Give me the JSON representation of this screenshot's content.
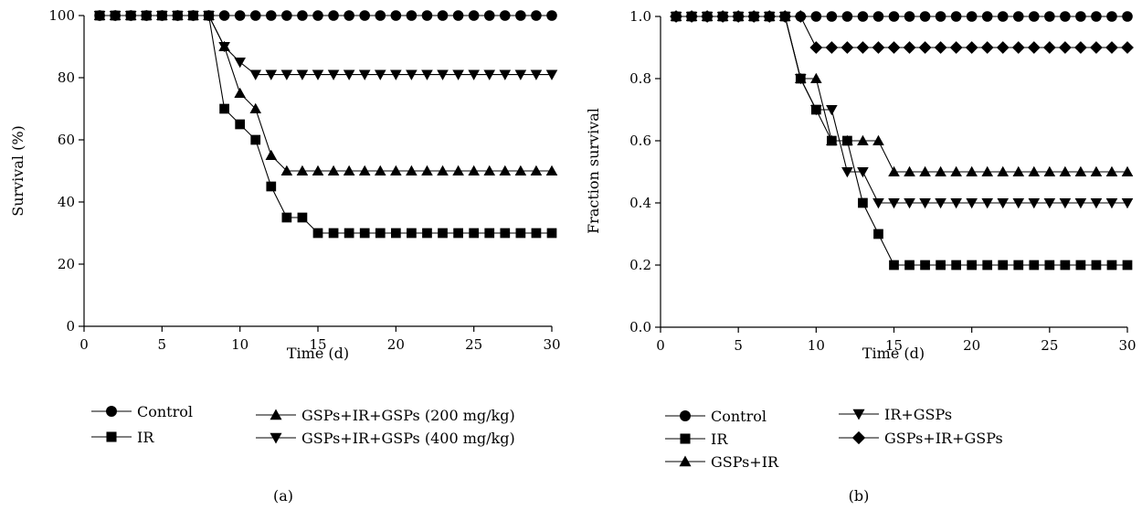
{
  "chart_data": [
    {
      "type": "line",
      "panel_label": "(a)",
      "xlabel": "Time (d)",
      "ylabel": "Survival (%)",
      "xlim": [
        0,
        30
      ],
      "ylim": [
        0,
        100
      ],
      "xticks": [
        0,
        5,
        10,
        15,
        20,
        25,
        30
      ],
      "yticks": [
        0,
        20,
        40,
        60,
        80,
        100
      ],
      "legend_placement": "bottom",
      "series": [
        {
          "name": "Control",
          "marker": "circle",
          "x": [
            1,
            2,
            3,
            4,
            5,
            6,
            7,
            8,
            9,
            10,
            11,
            12,
            13,
            14,
            15,
            16,
            17,
            18,
            19,
            20,
            21,
            22,
            23,
            24,
            25,
            26,
            27,
            28,
            29,
            30
          ],
          "y": [
            100,
            100,
            100,
            100,
            100,
            100,
            100,
            100,
            100,
            100,
            100,
            100,
            100,
            100,
            100,
            100,
            100,
            100,
            100,
            100,
            100,
            100,
            100,
            100,
            100,
            100,
            100,
            100,
            100,
            100
          ]
        },
        {
          "name": "IR",
          "marker": "square",
          "x": [
            1,
            2,
            3,
            4,
            5,
            6,
            7,
            8,
            9,
            10,
            11,
            12,
            13,
            14,
            15,
            16,
            17,
            18,
            19,
            20,
            21,
            22,
            23,
            24,
            25,
            26,
            27,
            28,
            29,
            30
          ],
          "y": [
            100,
            100,
            100,
            100,
            100,
            100,
            100,
            100,
            70,
            65,
            60,
            45,
            35,
            35,
            30,
            30,
            30,
            30,
            30,
            30,
            30,
            30,
            30,
            30,
            30,
            30,
            30,
            30,
            30,
            30
          ]
        },
        {
          "name": "GSPs+IR+GSPs (200 mg/kg)",
          "marker": "triangle-up",
          "x": [
            1,
            2,
            3,
            4,
            5,
            6,
            7,
            8,
            9,
            10,
            11,
            12,
            13,
            14,
            15,
            16,
            17,
            18,
            19,
            20,
            21,
            22,
            23,
            24,
            25,
            26,
            27,
            28,
            29,
            30
          ],
          "y": [
            100,
            100,
            100,
            100,
            100,
            100,
            100,
            100,
            90,
            75,
            70,
            55,
            50,
            50,
            50,
            50,
            50,
            50,
            50,
            50,
            50,
            50,
            50,
            50,
            50,
            50,
            50,
            50,
            50,
            50
          ]
        },
        {
          "name": "GSPs+IR+GSPs (400 mg/kg)",
          "marker": "triangle-down",
          "x": [
            1,
            2,
            3,
            4,
            5,
            6,
            7,
            8,
            9,
            10,
            11,
            12,
            13,
            14,
            15,
            16,
            17,
            18,
            19,
            20,
            21,
            22,
            23,
            24,
            25,
            26,
            27,
            28,
            29,
            30
          ],
          "y": [
            100,
            100,
            100,
            100,
            100,
            100,
            100,
            100,
            90,
            85,
            81,
            81,
            81,
            81,
            81,
            81,
            81,
            81,
            81,
            81,
            81,
            81,
            81,
            81,
            81,
            81,
            81,
            81,
            81,
            81
          ]
        }
      ]
    },
    {
      "type": "line",
      "panel_label": "(b)",
      "xlabel": "Time (d)",
      "ylabel": "Fraction survival",
      "xlim": [
        0,
        30
      ],
      "ylim": [
        0,
        1
      ],
      "xticks": [
        0,
        5,
        10,
        15,
        20,
        25,
        30
      ],
      "yticks": [
        "0.0",
        "0.2",
        "0.4",
        "0.6",
        "0.8",
        "1.0"
      ],
      "legend_placement": "bottom",
      "series": [
        {
          "name": "Control",
          "marker": "circle",
          "x": [
            1,
            2,
            3,
            4,
            5,
            6,
            7,
            8,
            9,
            10,
            11,
            12,
            13,
            14,
            15,
            16,
            17,
            18,
            19,
            20,
            21,
            22,
            23,
            24,
            25,
            26,
            27,
            28,
            29,
            30
          ],
          "y": [
            1,
            1,
            1,
            1,
            1,
            1,
            1,
            1,
            1,
            1,
            1,
            1,
            1,
            1,
            1,
            1,
            1,
            1,
            1,
            1,
            1,
            1,
            1,
            1,
            1,
            1,
            1,
            1,
            1,
            1
          ]
        },
        {
          "name": "IR",
          "marker": "square",
          "x": [
            1,
            2,
            3,
            4,
            5,
            6,
            7,
            8,
            9,
            10,
            11,
            12,
            13,
            14,
            15,
            16,
            17,
            18,
            19,
            20,
            21,
            22,
            23,
            24,
            25,
            26,
            27,
            28,
            29,
            30
          ],
          "y": [
            1,
            1,
            1,
            1,
            1,
            1,
            1,
            1,
            0.8,
            0.7,
            0.6,
            0.6,
            0.4,
            0.3,
            0.2,
            0.2,
            0.2,
            0.2,
            0.2,
            0.2,
            0.2,
            0.2,
            0.2,
            0.2,
            0.2,
            0.2,
            0.2,
            0.2,
            0.2,
            0.2
          ]
        },
        {
          "name": "GSPs+IR",
          "marker": "triangle-up",
          "x": [
            1,
            2,
            3,
            4,
            5,
            6,
            7,
            8,
            9,
            10,
            11,
            12,
            13,
            14,
            15,
            16,
            17,
            18,
            19,
            20,
            21,
            22,
            23,
            24,
            25,
            26,
            27,
            28,
            29,
            30
          ],
          "y": [
            1,
            1,
            1,
            1,
            1,
            1,
            1,
            1,
            0.8,
            0.8,
            0.6,
            0.6,
            0.6,
            0.6,
            0.5,
            0.5,
            0.5,
            0.5,
            0.5,
            0.5,
            0.5,
            0.5,
            0.5,
            0.5,
            0.5,
            0.5,
            0.5,
            0.5,
            0.5,
            0.5
          ]
        },
        {
          "name": "IR+GSPs",
          "marker": "triangle-down",
          "x": [
            1,
            2,
            3,
            4,
            5,
            6,
            7,
            8,
            9,
            10,
            11,
            12,
            13,
            14,
            15,
            16,
            17,
            18,
            19,
            20,
            21,
            22,
            23,
            24,
            25,
            26,
            27,
            28,
            29,
            30
          ],
          "y": [
            1,
            1,
            1,
            1,
            1,
            1,
            1,
            1,
            0.8,
            0.7,
            0.7,
            0.5,
            0.5,
            0.4,
            0.4,
            0.4,
            0.4,
            0.4,
            0.4,
            0.4,
            0.4,
            0.4,
            0.4,
            0.4,
            0.4,
            0.4,
            0.4,
            0.4,
            0.4,
            0.4
          ]
        },
        {
          "name": "GSPs+IR+GSPs",
          "marker": "diamond",
          "x": [
            1,
            2,
            3,
            4,
            5,
            6,
            7,
            8,
            9,
            10,
            11,
            12,
            13,
            14,
            15,
            16,
            17,
            18,
            19,
            20,
            21,
            22,
            23,
            24,
            25,
            26,
            27,
            28,
            29,
            30
          ],
          "y": [
            1,
            1,
            1,
            1,
            1,
            1,
            1,
            1,
            1,
            0.9,
            0.9,
            0.9,
            0.9,
            0.9,
            0.9,
            0.9,
            0.9,
            0.9,
            0.9,
            0.9,
            0.9,
            0.9,
            0.9,
            0.9,
            0.9,
            0.9,
            0.9,
            0.9,
            0.9,
            0.9
          ]
        }
      ]
    }
  ]
}
